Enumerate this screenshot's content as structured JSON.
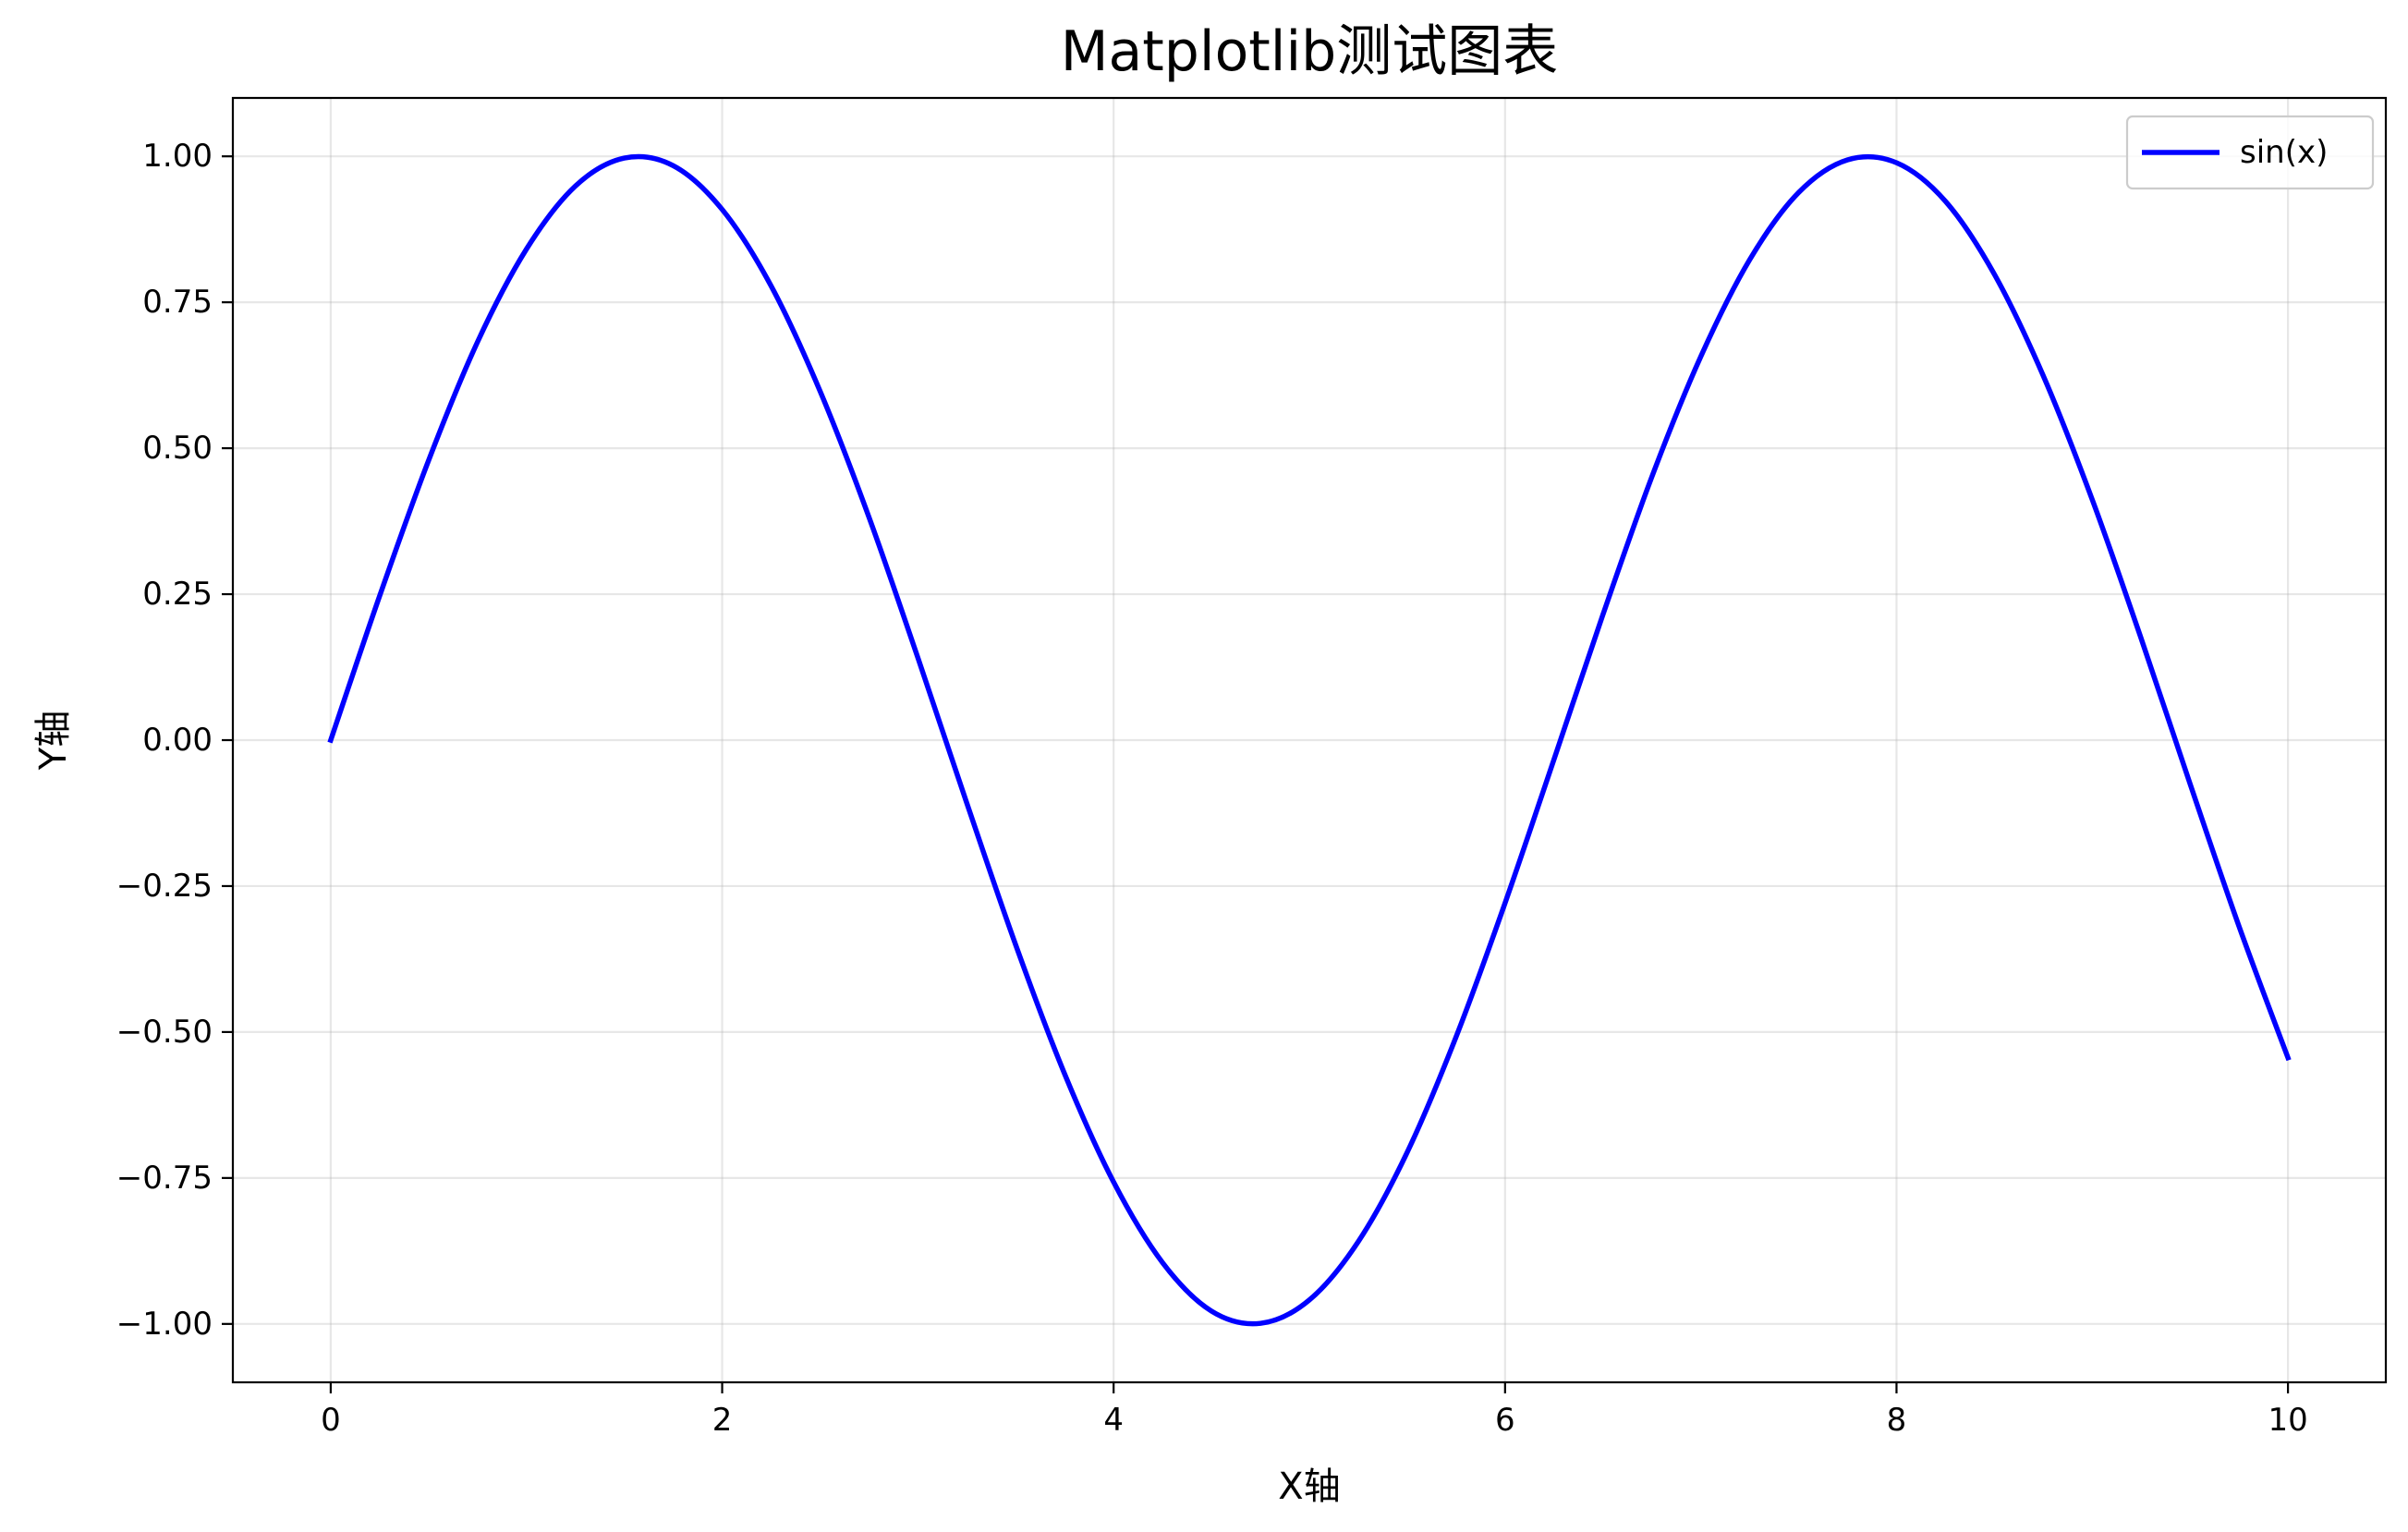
{
  "chart_data": {
    "type": "line",
    "title": "Matplotlib测试图表",
    "xlabel": "X轴",
    "ylabel": "Y轴",
    "xlim": [
      -0.5,
      10.5
    ],
    "ylim": [
      -1.1,
      1.1
    ],
    "xticks": [
      0,
      2,
      4,
      6,
      8,
      10
    ],
    "xtick_labels": [
      "0",
      "2",
      "4",
      "6",
      "8",
      "10"
    ],
    "yticks": [
      1.0,
      0.75,
      0.5,
      0.25,
      0.0,
      -0.25,
      -0.5,
      -0.75,
      -1.0
    ],
    "ytick_labels": [
      "1.00",
      "0.75",
      "0.50",
      "0.25",
      "0.00",
      "−0.25",
      "−0.50",
      "−0.75",
      "−1.00"
    ],
    "grid": true,
    "legend_position": "top-right",
    "series": [
      {
        "name": "sin(x)",
        "color": "#0000ff",
        "x": [
          0,
          0.25,
          0.5,
          0.75,
          1.0,
          1.25,
          1.5,
          1.75,
          2.0,
          2.25,
          2.5,
          2.75,
          3.0,
          3.25,
          3.5,
          3.75,
          4.0,
          4.25,
          4.5,
          4.75,
          5.0,
          5.25,
          5.5,
          5.75,
          6.0,
          6.25,
          6.5,
          6.75,
          7.0,
          7.25,
          7.5,
          7.75,
          8.0,
          8.25,
          8.5,
          8.75,
          9.0,
          9.25,
          9.5,
          9.75,
          10.0
        ],
        "y": [
          0.0,
          0.247,
          0.479,
          0.682,
          0.841,
          0.949,
          0.997,
          0.984,
          0.909,
          0.778,
          0.598,
          0.382,
          0.141,
          -0.108,
          -0.351,
          -0.572,
          -0.757,
          -0.895,
          -0.978,
          -0.999,
          -0.959,
          -0.859,
          -0.706,
          -0.508,
          -0.279,
          -0.033,
          0.215,
          0.451,
          0.657,
          0.823,
          0.938,
          0.994,
          0.989,
          0.923,
          0.798,
          0.624,
          0.412,
          0.174,
          -0.075,
          -0.319,
          -0.544
        ]
      }
    ]
  }
}
